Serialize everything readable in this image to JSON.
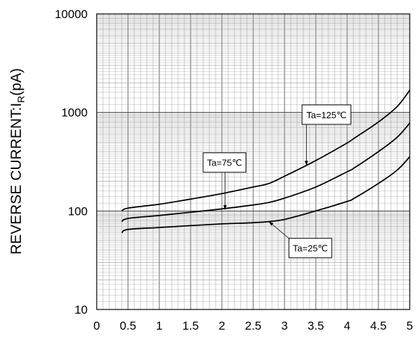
{
  "chart_data": {
    "type": "line",
    "title": "",
    "xlabel": "",
    "ylabel_main": "REVERSE CURRENT:I",
    "ylabel_sub": "R",
    "ylabel_unit": "(pA)",
    "xlim": [
      0,
      5
    ],
    "ylim": [
      10,
      10000
    ],
    "y_scale": "log",
    "grid": true,
    "x_ticks": [
      "0",
      "0.5",
      "1",
      "1.5",
      "2",
      "2.5",
      "3",
      "3.5",
      "4",
      "4.5",
      "5"
    ],
    "y_ticks": [
      "10",
      "100",
      "1000",
      "10000"
    ],
    "series": [
      {
        "name": "Ta=125℃",
        "x": [
          0.4,
          0.5,
          1.0,
          1.5,
          2.0,
          2.5,
          2.75,
          3.0,
          3.5,
          4.0,
          4.1,
          4.5,
          4.8,
          5.0
        ],
        "y": [
          100,
          107,
          117,
          132,
          150,
          175,
          190,
          225,
          325,
          490,
          540,
          800,
          1150,
          1680
        ]
      },
      {
        "name": "Ta=75℃",
        "x": [
          0.4,
          0.5,
          1.0,
          1.5,
          2.0,
          2.5,
          2.75,
          3.0,
          3.5,
          4.0,
          4.1,
          4.5,
          4.8,
          5.0
        ],
        "y": [
          78,
          84,
          90,
          97,
          105,
          115,
          122,
          135,
          175,
          250,
          270,
          400,
          560,
          780
        ]
      },
      {
        "name": "Ta=25℃",
        "x": [
          0.4,
          0.5,
          1.0,
          1.5,
          2.0,
          2.5,
          2.75,
          3.0,
          3.5,
          4.0,
          4.1,
          4.5,
          4.8,
          5.0
        ],
        "y": [
          60,
          65,
          68,
          71,
          74,
          76,
          78,
          82,
          100,
          125,
          133,
          190,
          260,
          355
        ]
      }
    ],
    "annotations": [
      {
        "text": "Ta=125℃",
        "series": 0,
        "box_x": 3.28,
        "box_y": 950,
        "target_x": 3.35,
        "target_y": 290
      },
      {
        "text": "Ta=75℃",
        "series": 1,
        "box_x": 1.7,
        "box_y": 310,
        "target_x": 2.05,
        "target_y": 103
      },
      {
        "text": "Ta=25℃",
        "series": 2,
        "box_x": 3.07,
        "box_y": 42,
        "target_x": 2.75,
        "target_y": 78
      }
    ]
  },
  "colors": {
    "line": "#000000",
    "grid": "#999999",
    "background": "#ffffff"
  }
}
